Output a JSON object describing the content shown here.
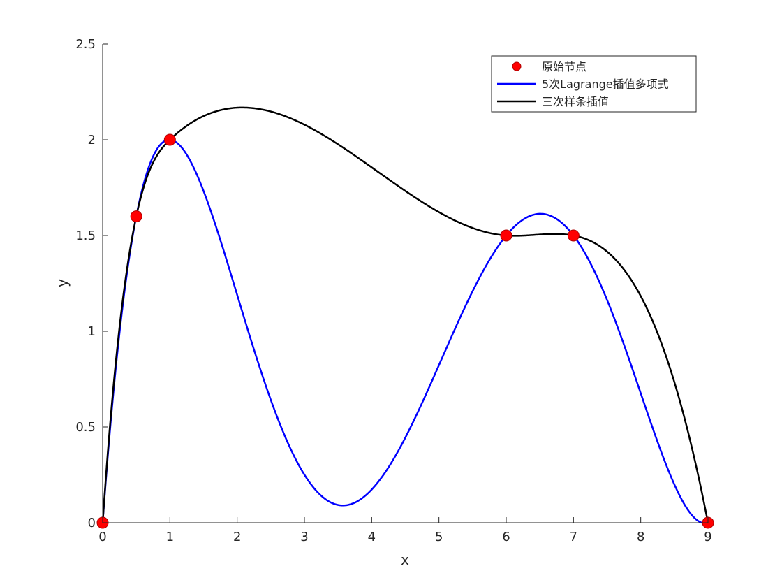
{
  "chart_data": {
    "type": "line",
    "title": "",
    "xlabel": "x",
    "ylabel": "y",
    "xlim": [
      0,
      9
    ],
    "ylim": [
      0,
      2.5
    ],
    "xticks": [
      0,
      1,
      2,
      3,
      4,
      5,
      6,
      7,
      8,
      9
    ],
    "yticks": [
      0,
      0.5,
      1,
      1.5,
      2,
      2.5
    ],
    "xtick_labels": [
      "0",
      "1",
      "2",
      "3",
      "4",
      "5",
      "6",
      "7",
      "8",
      "9"
    ],
    "ytick_labels": [
      "0",
      "0.5",
      "1",
      "1.5",
      "2",
      "2.5"
    ],
    "grid": false,
    "legend_position": "top-right",
    "nodes": {
      "x": [
        0,
        0.5,
        1,
        6,
        7,
        9
      ],
      "y": [
        0,
        1.6,
        2,
        1.5,
        1.5,
        0
      ]
    },
    "series": [
      {
        "name": "原始节点",
        "kind": "markers",
        "color": "#ff0000",
        "edge_color": "#b00000"
      },
      {
        "name": "5次Lagrange插值多项式",
        "kind": "lagrange",
        "color": "#0000ff"
      },
      {
        "name": "三次样条插值",
        "kind": "spline",
        "color": "#000000"
      }
    ]
  }
}
